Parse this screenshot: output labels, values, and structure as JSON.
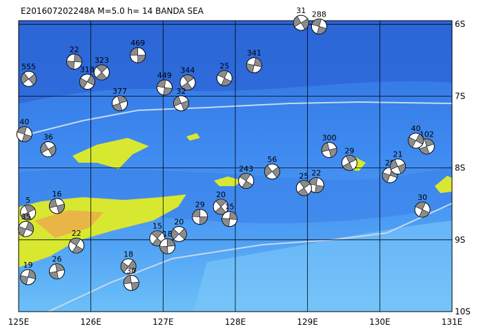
{
  "map": {
    "title": "E201607202248A  M=5.0  h= 14  BANDA SEA",
    "lon_range": [
      125,
      131
    ],
    "lat_range": [
      -10,
      -5.95
    ],
    "lon_ticks": [
      {
        "value": 125,
        "label": "125E"
      },
      {
        "value": 126,
        "label": "126E"
      },
      {
        "value": 127,
        "label": "127E"
      },
      {
        "value": 128,
        "label": "128E"
      },
      {
        "value": 129,
        "label": "129E"
      },
      {
        "value": 130,
        "label": "130E"
      },
      {
        "value": 131,
        "label": "131E"
      }
    ],
    "lat_ticks": [
      {
        "value": -6,
        "label": "6S"
      },
      {
        "value": -7,
        "label": "7S"
      },
      {
        "value": -8,
        "label": "8S"
      },
      {
        "value": -9,
        "label": "9S"
      },
      {
        "value": -10,
        "label": "10S"
      }
    ],
    "events": [
      {
        "lon": 126.65,
        "lat": -6.43,
        "depth": 469
      },
      {
        "lon": 126.15,
        "lat": -6.67,
        "depth": 323
      },
      {
        "lon": 125.77,
        "lat": -6.52,
        "depth": 22
      },
      {
        "lon": 125.14,
        "lat": -6.76,
        "depth": 555
      },
      {
        "lon": 127.02,
        "lat": -6.88,
        "depth": 449
      },
      {
        "lon": 127.34,
        "lat": -6.81,
        "depth": 344
      },
      {
        "lon": 128.26,
        "lat": -6.57,
        "depth": 341
      },
      {
        "lon": 128.91,
        "lat": -5.98,
        "depth": 31
      },
      {
        "lon": 129.16,
        "lat": -6.03,
        "depth": 288
      },
      {
        "lon": 129.58,
        "lat": -7.93,
        "depth": 29
      },
      {
        "lon": 130.14,
        "lat": -8.1,
        "depth": 28
      },
      {
        "lon": 130.25,
        "lat": -7.98,
        "depth": 21
      },
      {
        "lon": 130.59,
        "lat": -8.58,
        "depth": 30
      },
      {
        "lon": 130.65,
        "lat": -7.7,
        "depth": 102
      },
      {
        "lon": 130.5,
        "lat": -7.62,
        "depth": 40
      },
      {
        "lon": 125.53,
        "lat": -8.53,
        "depth": 16
      },
      {
        "lon": 125.8,
        "lat": -9.08,
        "depth": 22
      },
      {
        "lon": 125.53,
        "lat": -9.44,
        "depth": 26
      },
      {
        "lon": 126.52,
        "lat": -9.37,
        "depth": 18
      },
      {
        "lon": 126.56,
        "lat": -9.6,
        "depth": 30
      },
      {
        "lon": 126.92,
        "lat": -8.98,
        "depth": 15
      },
      {
        "lon": 127.06,
        "lat": -9.09,
        "depth": 18
      },
      {
        "lon": 127.22,
        "lat": -8.92,
        "depth": 20
      },
      {
        "lon": 127.51,
        "lat": -8.68,
        "depth": 29
      },
      {
        "lon": 127.8,
        "lat": -8.54,
        "depth": 20
      },
      {
        "lon": 127.92,
        "lat": -8.71,
        "depth": 15
      },
      {
        "lon": 128.51,
        "lat": -8.05,
        "depth": 56
      },
      {
        "lon": 129.12,
        "lat": -8.24,
        "depth": 22
      },
      {
        "lon": 128.95,
        "lat": -8.28,
        "depth": 25
      },
      {
        "lon": 125.13,
        "lat": -9.52,
        "depth": 19
      },
      {
        "lon": 125.41,
        "lat": -7.74,
        "depth": 36
      },
      {
        "lon": 125.08,
        "lat": -7.53,
        "depth": 40
      },
      {
        "lon": 125.13,
        "lat": -8.62,
        "depth": 5
      },
      {
        "lon": 125.1,
        "lat": -8.85,
        "depth": 35
      },
      {
        "lon": 127.25,
        "lat": -7.1,
        "depth": 32
      },
      {
        "lon": 127.85,
        "lat": -6.75,
        "depth": 25
      },
      {
        "lon": 126.4,
        "lat": -7.1,
        "depth": 377
      },
      {
        "lon": 125.95,
        "lat": -6.8,
        "depth": 318
      },
      {
        "lon": 129.3,
        "lat": -7.75,
        "depth": 300
      },
      {
        "lon": 128.15,
        "lat": -8.18,
        "depth": 243
      }
    ]
  }
}
